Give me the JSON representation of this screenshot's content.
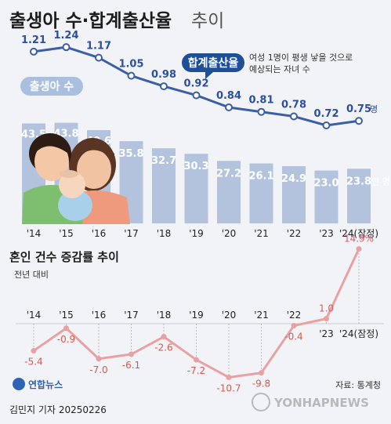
{
  "header": {
    "title_main": "출생아 수·합계출산율",
    "title_suffix": "추이"
  },
  "top_chart": {
    "rate_label": "합계출산율",
    "rate_note_line1": "여성 1명이 평생 낳을 것으로",
    "rate_note_line2": "예상되는 자녀 수",
    "births_label": "출생아 수",
    "rate_unit": "명",
    "births_unit": "만 명"
  },
  "bottom_chart": {
    "title": "혼인 건수 증감률 추이",
    "subtitle": "전년 대비"
  },
  "footer": {
    "source": "자료: 통계청",
    "credit": "김민지 기자  20250226",
    "logo_text": "연합뉴스",
    "watermark": "YONHAPNEWS"
  },
  "colors": {
    "bar": "#b3c3de",
    "rate_line": "#3b5fa6",
    "rate_text": "#2c4fa0",
    "births_text": "#ffffff",
    "marriage_line": "#e9a0a3",
    "marriage_neg_text": "#d9574f",
    "marriage_pos_text": "#e05b63",
    "badge_rate": "#1f4f96",
    "badge_births": "#a9bfe0"
  },
  "chart_data": [
    {
      "type": "bar",
      "categories": [
        "'14",
        "'15",
        "'16",
        "'17",
        "'18",
        "'19",
        "'20",
        "'21",
        "'22",
        "'23",
        "'24(잠정)"
      ],
      "series": [
        {
          "name": "출생아 수",
          "values": [
            43.5,
            43.8,
            40.6,
            35.8,
            32.7,
            30.3,
            27.2,
            26.1,
            24.9,
            23.0,
            23.8
          ],
          "labels": [
            "43.5",
            "43.8",
            "40.6",
            "35.8",
            "32.7",
            "30.3",
            "27.2",
            "26.1",
            "24.9",
            "23.0",
            "23.8"
          ]
        },
        {
          "name": "합계출산율",
          "values": [
            1.21,
            1.24,
            1.17,
            1.05,
            0.98,
            0.92,
            0.84,
            0.81,
            0.78,
            0.72,
            0.75
          ],
          "labels": [
            "1.21",
            "1.24",
            "1.17",
            "1.05",
            "0.98",
            "0.92",
            "0.84",
            "0.81",
            "0.78",
            "0.72",
            "0.75"
          ]
        }
      ]
    },
    {
      "type": "line",
      "title": "혼인 건수 증감률 추이",
      "categories": [
        "'14",
        "'15",
        "'16",
        "'17",
        "'18",
        "'19",
        "'20",
        "'21",
        "'22",
        "'23",
        "'24(잠정)"
      ],
      "values": [
        -5.4,
        -0.9,
        -7.0,
        -6.1,
        -2.6,
        -7.2,
        -10.7,
        -9.8,
        -0.4,
        1.0,
        14.9
      ],
      "labels": [
        "-5.4",
        "-0.9",
        "-7.0",
        "-6.1",
        "-2.6",
        "-7.2",
        "-10.7",
        "-9.8",
        "-0.4",
        "1.0",
        "14.9%"
      ]
    }
  ]
}
